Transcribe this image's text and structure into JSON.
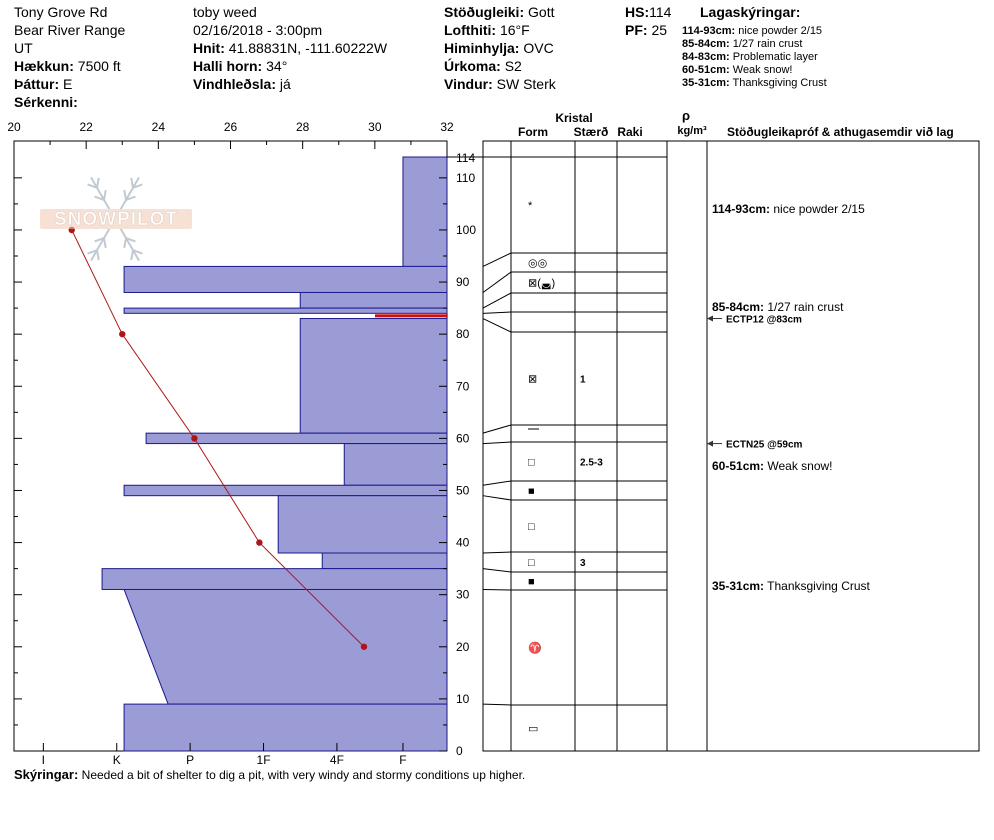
{
  "header": {
    "col1": [
      {
        "label": "",
        "value": "Tony Grove Rd"
      },
      {
        "label": "",
        "value": "Bear River Range"
      },
      {
        "label": "",
        "value": "UT"
      },
      {
        "label": "Hækkun:",
        "value": "7500 ft"
      },
      {
        "label": "Þáttur:",
        "value": "E"
      },
      {
        "label": "Sérkenni:",
        "value": ""
      }
    ],
    "col2": [
      {
        "label": "",
        "value": "toby weed"
      },
      {
        "label": "",
        "value": "02/16/2018 - 3:00pm"
      },
      {
        "label": "Hnit:",
        "value": "41.88831N, -111.60222W"
      },
      {
        "label": "Halli horn:",
        "value": "34°"
      },
      {
        "label": "Vindhleðsla:",
        "value": "já"
      }
    ],
    "col3": [
      {
        "label": "Stöðugleiki:",
        "value": "Gott"
      },
      {
        "label": "Lofthiti:",
        "value": "16°F"
      },
      {
        "label": "Himinhylja:",
        "value": "OVC"
      },
      {
        "label": "Úrkoma:",
        "value": "S2"
      },
      {
        "label": "Vindur:",
        "value": "SW Sterk"
      }
    ],
    "hs": {
      "label": "HS:",
      "value": "114"
    },
    "pf": {
      "label": "PF:",
      "value": "25"
    },
    "legend_title": "Lagaskýringar:",
    "legend": [
      {
        "range": "114-93cm:",
        "text": "nice powder 2/15"
      },
      {
        "range": "85-84cm:",
        "text": "1/27 rain crust"
      },
      {
        "range": "84-83cm:",
        "text": "Problematic layer"
      },
      {
        "range": "60-51cm:",
        "text": "Weak snow!"
      },
      {
        "range": "35-31cm:",
        "text": "Thanksgiving Crust"
      }
    ]
  },
  "watermark": "SNOWPILOT",
  "columns": {
    "kristal": "Kristal",
    "form": "Form",
    "staerd": "Stærð",
    "raki": "Raki",
    "rho": "ρ",
    "density_unit": "kg/m³",
    "stability": "Stöðugleikapróf & athugasemdir við lag"
  },
  "temp_axis": {
    "min": 20,
    "max": 32,
    "ticks": [
      "20",
      "22",
      "24",
      "26",
      "28",
      "30",
      "32"
    ]
  },
  "hardness_axis": {
    "labels": [
      "I",
      "K",
      "P",
      "1F",
      "4F",
      "F"
    ]
  },
  "depth_axis": {
    "min": 0,
    "max": 114,
    "hs_label": "114",
    "ticks": [
      "0",
      "10",
      "20",
      "30",
      "40",
      "50",
      "60",
      "70",
      "80",
      "90",
      "100",
      "110"
    ]
  },
  "chart_data": {
    "type": "snow-profile",
    "hardness_scale": [
      "F",
      "4F",
      "1F",
      "P",
      "K",
      "I"
    ],
    "layers": [
      {
        "top": 114,
        "bottom": 93,
        "hardness": 0.6,
        "form": "*",
        "size": "",
        "comment": "114-93cm: nice powder 2/15"
      },
      {
        "top": 93,
        "bottom": 88,
        "hardness": 4.4,
        "form": "◎◎",
        "size": ""
      },
      {
        "top": 88,
        "bottom": 85,
        "hardness": 2.0,
        "form": "⊠(◛)",
        "size": ""
      },
      {
        "top": 85,
        "bottom": 84,
        "hardness": 4.4,
        "form": "",
        "size": "",
        "comment": "85-84cm: 1/27 rain crust"
      },
      {
        "top": 84,
        "bottom": 83,
        "hardness": 0.0,
        "form": "",
        "size": ""
      },
      {
        "top": 83,
        "bottom": 61,
        "hardness": 2.0,
        "form": "⊠",
        "size": "1"
      },
      {
        "top": 61,
        "bottom": 59,
        "hardness": 4.1,
        "form": "⎺",
        "size": ""
      },
      {
        "top": 59,
        "bottom": 51,
        "hardness": 1.4,
        "form": "□",
        "size": "2.5-3",
        "comment": "60-51cm: Weak snow!"
      },
      {
        "top": 51,
        "bottom": 49,
        "hardness": 4.4,
        "form": "■",
        "size": ""
      },
      {
        "top": 49,
        "bottom": 38,
        "hardness": 2.3,
        "form": "□",
        "size": ""
      },
      {
        "top": 38,
        "bottom": 35,
        "hardness": 1.7,
        "form": "□",
        "size": "3"
      },
      {
        "top": 35,
        "bottom": 31,
        "hardness": 4.7,
        "form": "■",
        "size": "",
        "comment": "35-31cm: Thanksgiving Crust"
      },
      {
        "top": 31,
        "bottom": 9,
        "hardness": [
          4.4,
          3.8
        ],
        "form": "♈",
        "size": ""
      },
      {
        "top": 9,
        "bottom": 0,
        "hardness": 4.4,
        "form": "▭",
        "size": ""
      }
    ],
    "temperature_profile": [
      {
        "depth": 100,
        "temp": 21.6
      },
      {
        "depth": 80,
        "temp": 23.0
      },
      {
        "depth": 60,
        "temp": 25.0
      },
      {
        "depth": 40,
        "temp": 26.8
      },
      {
        "depth": 20,
        "temp": 29.7
      }
    ],
    "tests": [
      {
        "depth": 83,
        "label": "ECTP12 @83cm"
      },
      {
        "depth": 59,
        "label": "ECTN25 @59cm"
      }
    ],
    "problem_layer": {
      "top": 84,
      "bottom": 83
    }
  },
  "comments": {
    "label": "Skýringar:",
    "text": "Needed a bit of shelter to dig a pit, with very windy and stormy conditions up higher."
  },
  "colors": {
    "hardness_fill": "#9b9bd6",
    "hardness_stroke": "#1a1a8c",
    "temp_line": "#b01515",
    "problem": "#d01010"
  }
}
